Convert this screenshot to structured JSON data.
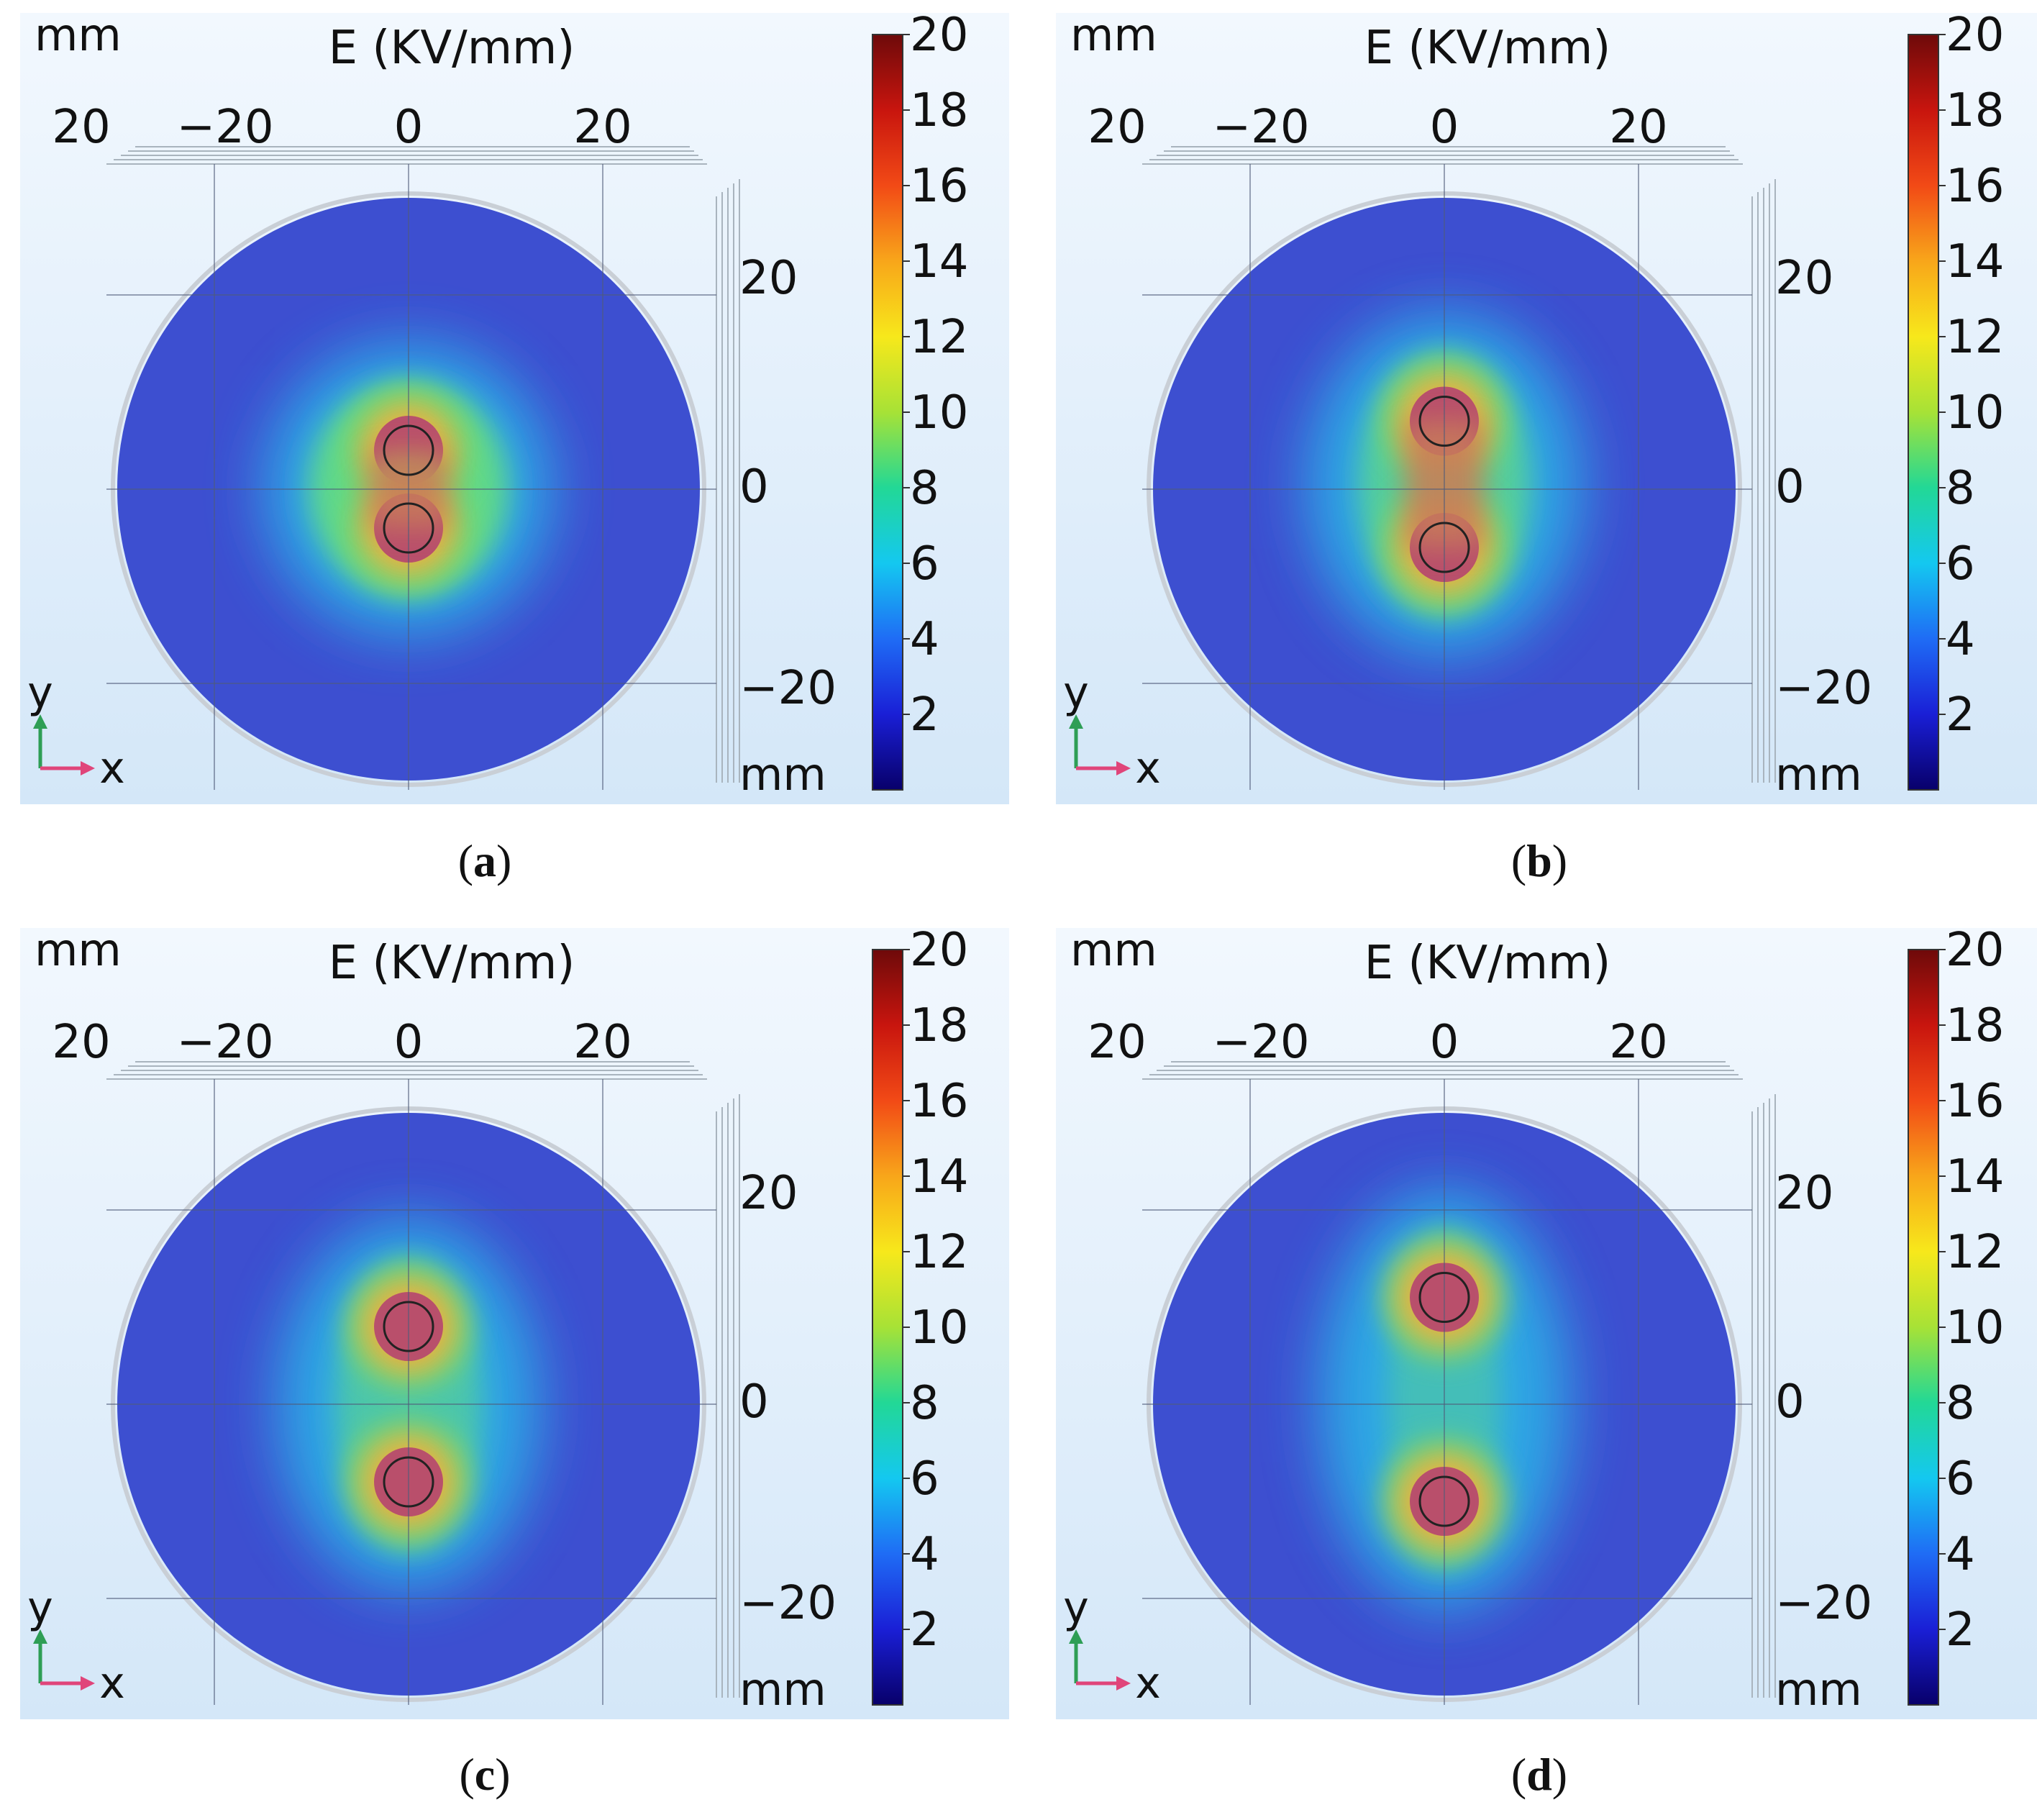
{
  "figure": {
    "colorbar_ticks": [
      "2",
      "4",
      "6",
      "8",
      "10",
      "12",
      "14",
      "16",
      "18",
      "20"
    ],
    "panels": [
      {
        "id": "a",
        "caption": "a",
        "title": "E (KV/mm)",
        "unit": "mm",
        "top_axis_ticks": [
          "20",
          "−20",
          "0",
          "20"
        ],
        "right_axis_ticks": [
          "20",
          "0",
          "−20"
        ],
        "axis_x": "x",
        "axis_y": "y",
        "holes_y_mm": [
          4.0,
          -4.0
        ],
        "field_spread": "compact-merged"
      },
      {
        "id": "b",
        "caption": "b",
        "title": "E (KV/mm)",
        "unit": "mm",
        "top_axis_ticks": [
          "20",
          "−20",
          "0",
          "20"
        ],
        "right_axis_ticks": [
          "20",
          "0",
          "−20"
        ],
        "axis_x": "x",
        "axis_y": "y",
        "holes_y_mm": [
          7.0,
          -6.0
        ],
        "field_spread": "necked"
      },
      {
        "id": "c",
        "caption": "c",
        "title": "E (KV/mm)",
        "unit": "mm",
        "top_axis_ticks": [
          "20",
          "−20",
          "0",
          "20"
        ],
        "right_axis_ticks": [
          "20",
          "0",
          "−20"
        ],
        "axis_x": "x",
        "axis_y": "y",
        "holes_y_mm": [
          8.0,
          -8.0
        ],
        "field_spread": "separating"
      },
      {
        "id": "d",
        "caption": "d",
        "title": "E (KV/mm)",
        "unit": "mm",
        "top_axis_ticks": [
          "20",
          "−20",
          "0",
          "20"
        ],
        "right_axis_ticks": [
          "20",
          "0",
          "−20"
        ],
        "axis_x": "x",
        "axis_y": "y",
        "holes_y_mm": [
          11.0,
          -10.0
        ],
        "field_spread": "separate"
      }
    ]
  },
  "chart_data": {
    "type": "heatmap",
    "quantity": "E (KV/mm)",
    "colorbar_range": [
      0,
      20
    ],
    "colorbar_ticks": [
      2,
      4,
      6,
      8,
      10,
      12,
      14,
      16,
      18,
      20
    ],
    "xlim_mm": [
      -30,
      30
    ],
    "ylim_mm": [
      -30,
      30
    ],
    "domain_radius_mm": 30,
    "panels": [
      {
        "label": "a",
        "electrode_centers_mm": [
          [
            0,
            4
          ],
          [
            0,
            -4
          ]
        ],
        "electrode_radius_mm": 2.5
      },
      {
        "label": "b",
        "electrode_centers_mm": [
          [
            0,
            7
          ],
          [
            0,
            -6
          ]
        ],
        "electrode_radius_mm": 2.5
      },
      {
        "label": "c",
        "electrode_centers_mm": [
          [
            0,
            8
          ],
          [
            0,
            -8
          ]
        ],
        "electrode_radius_mm": 2.5
      },
      {
        "label": "d",
        "electrode_centers_mm": [
          [
            0,
            11
          ],
          [
            0,
            -10
          ]
        ],
        "electrode_radius_mm": 2.5
      }
    ]
  }
}
